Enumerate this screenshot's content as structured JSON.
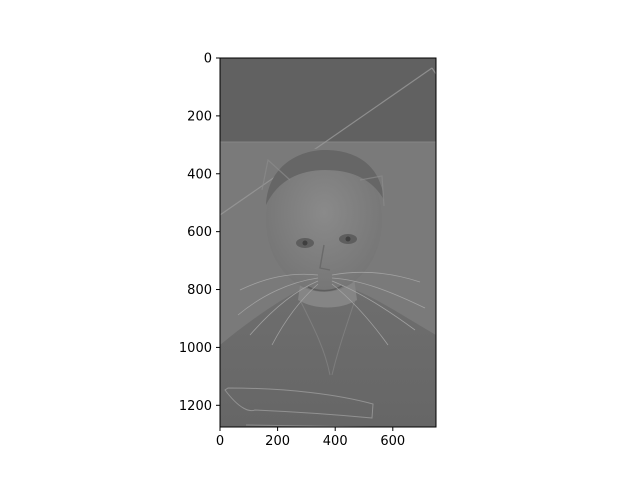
{
  "chart_data": {
    "type": "image",
    "title": "",
    "xlabel": "",
    "ylabel": "",
    "xlim": [
      0,
      750
    ],
    "ylim": [
      1275,
      0
    ],
    "y_axis_inverted": true,
    "x_ticks": [
      0,
      200,
      400,
      600
    ],
    "y_ticks": [
      0,
      200,
      400,
      600,
      800,
      1000,
      1200
    ],
    "x_tick_labels": [
      "0",
      "200",
      "400",
      "600"
    ],
    "y_tick_labels": [
      "0",
      "200",
      "400",
      "600",
      "800",
      "1000",
      "1200"
    ],
    "grid": false,
    "colormap": "gray",
    "image_width": 750,
    "image_height": 1275,
    "image_content": "grayscale hybrid image of a man's portrait blended with a cat's face (whiskers and ears visible), with a dark band across the top and a diagonal line in the upper-right"
  },
  "colors": {
    "background": "#ffffff",
    "axis": "#000000",
    "image_base": "#7a7a7a",
    "image_top_band": "#616161"
  }
}
